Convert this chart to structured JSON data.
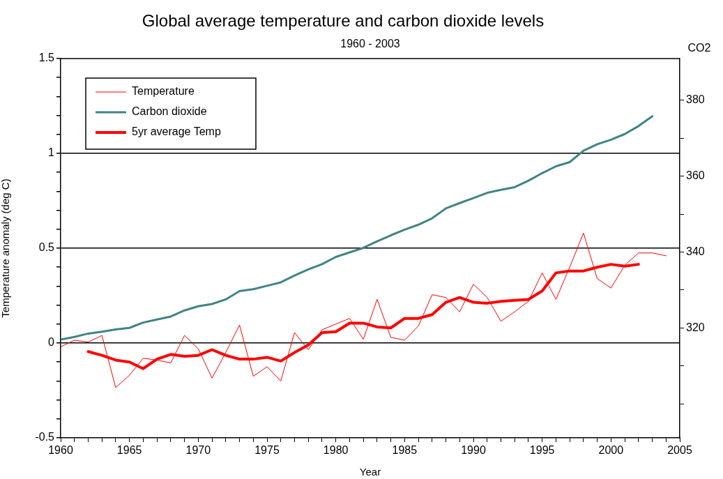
{
  "chart_data": {
    "type": "line",
    "title": "Global average temperature and carbon dioxide levels",
    "subtitle": "1960 - 2003",
    "xlabel": "Year",
    "ylabel": "Temperature anomaly (deg C)",
    "y2label": "CO2",
    "xlim": [
      1960,
      2005
    ],
    "xticks": [
      1960,
      {
        "value": 1961,
        "label": null
      },
      {
        "value": 1962,
        "label": null
      },
      {
        "value": 1963,
        "label": null
      },
      {
        "value": 1964,
        "label": null
      },
      1965,
      {
        "value": 1966,
        "label": null
      },
      {
        "value": 1967,
        "label": null
      },
      {
        "value": 1968,
        "label": null
      },
      {
        "value": 1969,
        "label": null
      },
      1970,
      {
        "value": 1971,
        "label": null
      },
      {
        "value": 1972,
        "label": null
      },
      {
        "value": 1973,
        "label": null
      },
      {
        "value": 1974,
        "label": null
      },
      1975,
      {
        "value": 1976,
        "label": null
      },
      {
        "value": 1977,
        "label": null
      },
      {
        "value": 1978,
        "label": null
      },
      {
        "value": 1979,
        "label": null
      },
      1980,
      {
        "value": 1981,
        "label": null
      },
      {
        "value": 1982,
        "label": null
      },
      {
        "value": 1983,
        "label": null
      },
      {
        "value": 1984,
        "label": null
      },
      1985,
      {
        "value": 1986,
        "label": null
      },
      {
        "value": 1987,
        "label": null
      },
      {
        "value": 1988,
        "label": null
      },
      {
        "value": 1989,
        "label": null
      },
      1990,
      {
        "value": 1991,
        "label": null
      },
      {
        "value": 1992,
        "label": null
      },
      {
        "value": 1993,
        "label": null
      },
      {
        "value": 1994,
        "label": null
      },
      1995,
      {
        "value": 1996,
        "label": null
      },
      {
        "value": 1997,
        "label": null
      },
      {
        "value": 1998,
        "label": null
      },
      {
        "value": 1999,
        "label": null
      },
      2000,
      {
        "value": 2001,
        "label": null
      },
      {
        "value": 2002,
        "label": null
      },
      {
        "value": 2003,
        "label": null
      },
      {
        "value": 2004,
        "label": null
      },
      2005
    ],
    "ylim": [
      -0.5,
      1.5
    ],
    "yticks": [
      -0.5,
      {
        "value": -0.4,
        "label": null
      },
      {
        "value": -0.3,
        "label": null
      },
      {
        "value": -0.2,
        "label": null
      },
      {
        "value": -0.1,
        "label": null
      },
      0,
      {
        "value": 0.1,
        "label": null
      },
      {
        "value": 0.2,
        "label": null
      },
      {
        "value": 0.3,
        "label": null
      },
      {
        "value": 0.4,
        "label": null
      },
      0.5,
      {
        "value": 0.6,
        "label": null
      },
      {
        "value": 0.7,
        "label": null
      },
      {
        "value": 0.8,
        "label": null
      },
      {
        "value": 0.9,
        "label": null
      },
      1,
      {
        "value": 1.1,
        "label": null
      },
      {
        "value": 1.2,
        "label": null
      },
      {
        "value": 1.3,
        "label": null
      },
      {
        "value": 1.4,
        "label": null
      },
      1.5
    ],
    "y2lim": [
      291,
      391
    ],
    "y2ticks": [
      {
        "value": 300,
        "label": null
      },
      {
        "value": 310,
        "label": null
      },
      320,
      {
        "value": 330,
        "label": null
      },
      340,
      {
        "value": 350,
        "label": null
      },
      360,
      {
        "value": 370,
        "label": null
      },
      380
    ],
    "grid": "y",
    "legend": "top left",
    "marker": "none",
    "line_style": "solid",
    "series": [
      {
        "name": "Temperature",
        "color": "#ff0000",
        "x": [
          1960,
          1961,
          1962,
          1963,
          1964,
          1965,
          1966,
          1967,
          1968,
          1969,
          1970,
          1971,
          1972,
          1973,
          1974,
          1975,
          1976,
          1977,
          1978,
          1979,
          1980,
          1981,
          1982,
          1983,
          1984,
          1985,
          1986,
          1987,
          1988,
          1989,
          1990,
          1991,
          1992,
          1993,
          1994,
          1995,
          1996,
          1997,
          1998,
          1999,
          2000,
          2001,
          2002,
          2003,
          2004
        ],
        "values": [
          -0.02,
          0.015,
          0.005,
          0.04,
          -0.235,
          -0.17,
          -0.08,
          -0.09,
          -0.105,
          0.04,
          -0.03,
          -0.185,
          -0.05,
          0.095,
          -0.175,
          -0.125,
          -0.2,
          0.055,
          -0.035,
          0.07,
          0.1,
          0.13,
          0.02,
          0.23,
          0.03,
          0.015,
          0.09,
          0.255,
          0.24,
          0.165,
          0.31,
          0.24,
          0.115,
          0.165,
          0.22,
          0.37,
          0.23,
          0.4,
          0.58,
          0.34,
          0.29,
          0.41,
          0.475,
          0.475,
          0.46
        ]
      },
      {
        "name": "Carbon dioxide",
        "color": "#408484",
        "axis": "y2",
        "x": [
          1960,
          1961,
          1962,
          1963,
          1964,
          1965,
          1966,
          1967,
          1968,
          1969,
          1970,
          1971,
          1972,
          1973,
          1974,
          1975,
          1976,
          1977,
          1978,
          1979,
          1980,
          1981,
          1982,
          1983,
          1984,
          1985,
          1986,
          1987,
          1988,
          1989,
          1990,
          1991,
          1992,
          1993,
          1994,
          1995,
          1996,
          1997,
          1998,
          1999,
          2000,
          2001,
          2002,
          2003
        ],
        "values": [
          316.9,
          317.6,
          318.5,
          319.0,
          319.6,
          320.0,
          321.4,
          322.2,
          323.0,
          324.6,
          325.7,
          326.3,
          327.5,
          329.7,
          330.2,
          331.1,
          332.0,
          333.8,
          335.4,
          336.8,
          338.7,
          339.9,
          341.1,
          342.8,
          344.4,
          345.9,
          347.2,
          348.9,
          351.5,
          352.9,
          354.2,
          355.6,
          356.4,
          357.1,
          358.8,
          360.8,
          362.6,
          363.7,
          366.7,
          368.4,
          369.6,
          371.1,
          373.2,
          375.8
        ]
      },
      {
        "name": "5yr average Temp",
        "color": "#ff0000",
        "x": [
          1962,
          1963,
          1964,
          1965,
          1966,
          1967,
          1968,
          1969,
          1970,
          1971,
          1972,
          1973,
          1974,
          1975,
          1976,
          1977,
          1978,
          1979,
          1980,
          1981,
          1982,
          1983,
          1984,
          1985,
          1986,
          1987,
          1988,
          1989,
          1990,
          1991,
          1992,
          1993,
          1994,
          1995,
          1996,
          1997,
          1998,
          1999,
          2000,
          2001,
          2002
        ],
        "values": [
          -0.045,
          -0.065,
          -0.09,
          -0.1,
          -0.135,
          -0.085,
          -0.06,
          -0.07,
          -0.065,
          -0.035,
          -0.065,
          -0.085,
          -0.085,
          -0.075,
          -0.095,
          -0.05,
          -0.01,
          0.055,
          0.06,
          0.105,
          0.105,
          0.085,
          0.08,
          0.13,
          0.13,
          0.15,
          0.215,
          0.24,
          0.215,
          0.21,
          0.22,
          0.225,
          0.23,
          0.275,
          0.37,
          0.38,
          0.38,
          0.4,
          0.415,
          0.405,
          0.415
        ]
      }
    ]
  }
}
